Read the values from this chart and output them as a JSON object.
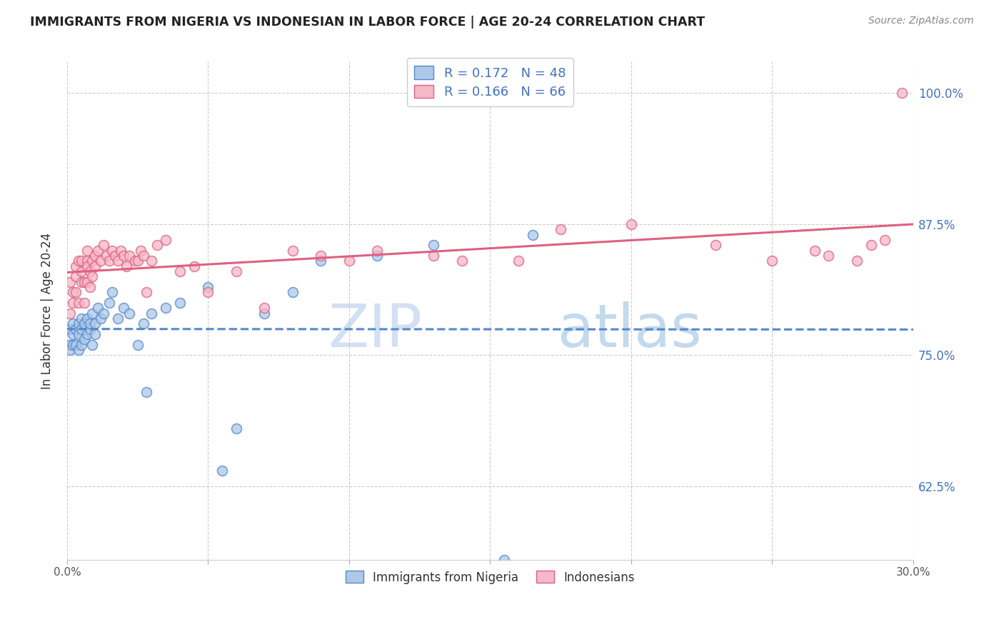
{
  "title": "IMMIGRANTS FROM NIGERIA VS INDONESIAN IN LABOR FORCE | AGE 20-24 CORRELATION CHART",
  "source": "Source: ZipAtlas.com",
  "ylabel": "In Labor Force | Age 20-24",
  "xlim": [
    0.0,
    0.3
  ],
  "ylim": [
    0.555,
    1.03
  ],
  "yticks": [
    0.625,
    0.75,
    0.875,
    1.0
  ],
  "ytick_labels": [
    "62.5%",
    "75.0%",
    "87.5%",
    "100.0%"
  ],
  "xticks": [
    0.0,
    0.05,
    0.1,
    0.15,
    0.2,
    0.25,
    0.3
  ],
  "nigeria_R": 0.172,
  "nigeria_N": 48,
  "indonesian_R": 0.166,
  "indonesian_N": 66,
  "nigeria_color": "#adc8e8",
  "indonesian_color": "#f5b8c8",
  "nigeria_line_color": "#5588cc",
  "indonesian_line_color": "#e06080",
  "watermark_color": "#ccddf0",
  "nigeria_x": [
    0.001,
    0.001,
    0.001,
    0.002,
    0.002,
    0.002,
    0.003,
    0.003,
    0.004,
    0.004,
    0.004,
    0.005,
    0.005,
    0.005,
    0.006,
    0.006,
    0.007,
    0.007,
    0.008,
    0.008,
    0.009,
    0.009,
    0.01,
    0.01,
    0.011,
    0.012,
    0.013,
    0.015,
    0.016,
    0.018,
    0.02,
    0.022,
    0.025,
    0.027,
    0.028,
    0.03,
    0.035,
    0.04,
    0.05,
    0.055,
    0.06,
    0.07,
    0.08,
    0.09,
    0.11,
    0.13,
    0.155,
    0.165
  ],
  "nigeria_y": [
    0.76,
    0.775,
    0.755,
    0.77,
    0.78,
    0.76,
    0.775,
    0.76,
    0.78,
    0.77,
    0.755,
    0.775,
    0.785,
    0.76,
    0.78,
    0.765,
    0.77,
    0.785,
    0.775,
    0.78,
    0.79,
    0.76,
    0.78,
    0.77,
    0.795,
    0.785,
    0.79,
    0.8,
    0.81,
    0.785,
    0.795,
    0.79,
    0.76,
    0.78,
    0.715,
    0.79,
    0.795,
    0.8,
    0.815,
    0.64,
    0.68,
    0.79,
    0.81,
    0.84,
    0.845,
    0.855,
    0.555,
    0.865
  ],
  "indonesian_x": [
    0.001,
    0.001,
    0.002,
    0.002,
    0.003,
    0.003,
    0.003,
    0.004,
    0.004,
    0.005,
    0.005,
    0.005,
    0.006,
    0.006,
    0.007,
    0.007,
    0.007,
    0.007,
    0.008,
    0.008,
    0.009,
    0.009,
    0.01,
    0.01,
    0.011,
    0.012,
    0.013,
    0.014,
    0.015,
    0.016,
    0.017,
    0.018,
    0.019,
    0.02,
    0.021,
    0.022,
    0.024,
    0.025,
    0.026,
    0.027,
    0.028,
    0.03,
    0.032,
    0.035,
    0.04,
    0.045,
    0.05,
    0.06,
    0.07,
    0.08,
    0.09,
    0.1,
    0.11,
    0.13,
    0.14,
    0.16,
    0.175,
    0.2,
    0.23,
    0.25,
    0.265,
    0.27,
    0.28,
    0.285,
    0.29,
    0.296
  ],
  "indonesian_y": [
    0.82,
    0.79,
    0.8,
    0.81,
    0.835,
    0.81,
    0.825,
    0.84,
    0.8,
    0.83,
    0.82,
    0.84,
    0.8,
    0.82,
    0.84,
    0.835,
    0.82,
    0.85,
    0.815,
    0.83,
    0.84,
    0.825,
    0.835,
    0.845,
    0.85,
    0.84,
    0.855,
    0.845,
    0.84,
    0.85,
    0.845,
    0.84,
    0.85,
    0.845,
    0.835,
    0.845,
    0.84,
    0.84,
    0.85,
    0.845,
    0.81,
    0.84,
    0.855,
    0.86,
    0.83,
    0.835,
    0.81,
    0.83,
    0.795,
    0.85,
    0.845,
    0.84,
    0.85,
    0.845,
    0.84,
    0.84,
    0.87,
    0.875,
    0.855,
    0.84,
    0.85,
    0.845,
    0.84,
    0.855,
    0.86,
    1.0
  ]
}
